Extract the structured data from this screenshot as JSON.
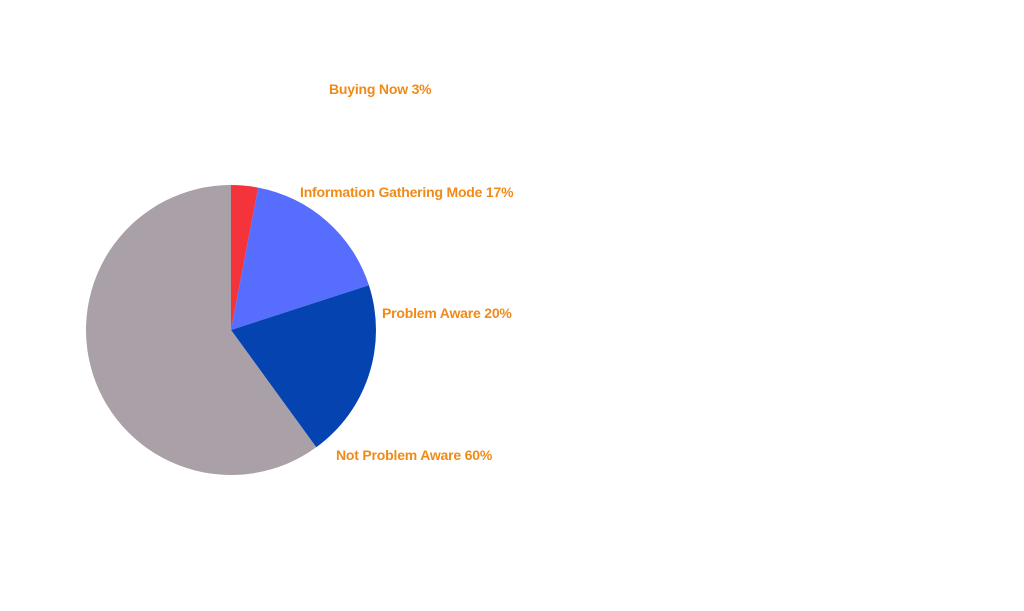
{
  "chart_data": {
    "type": "pie",
    "slices": [
      {
        "label": "Buying Now",
        "value": 3,
        "color": "#f5333b",
        "display": "Buying Now 3%"
      },
      {
        "label": "Information Gathering Mode",
        "value": 17,
        "color": "#566dfe",
        "display": "Information Gathering Mode 17%"
      },
      {
        "label": "Problem Aware",
        "value": 20,
        "color": "#0443b0",
        "display": "Problem Aware 20%"
      },
      {
        "label": "Not Problem Aware",
        "value": 60,
        "color": "#a9a0a8",
        "display": "Not Problem Aware 60%"
      }
    ],
    "label_color": "#f08a18",
    "start": "12 o'clock",
    "direction": "clockwise",
    "legend": "none"
  }
}
